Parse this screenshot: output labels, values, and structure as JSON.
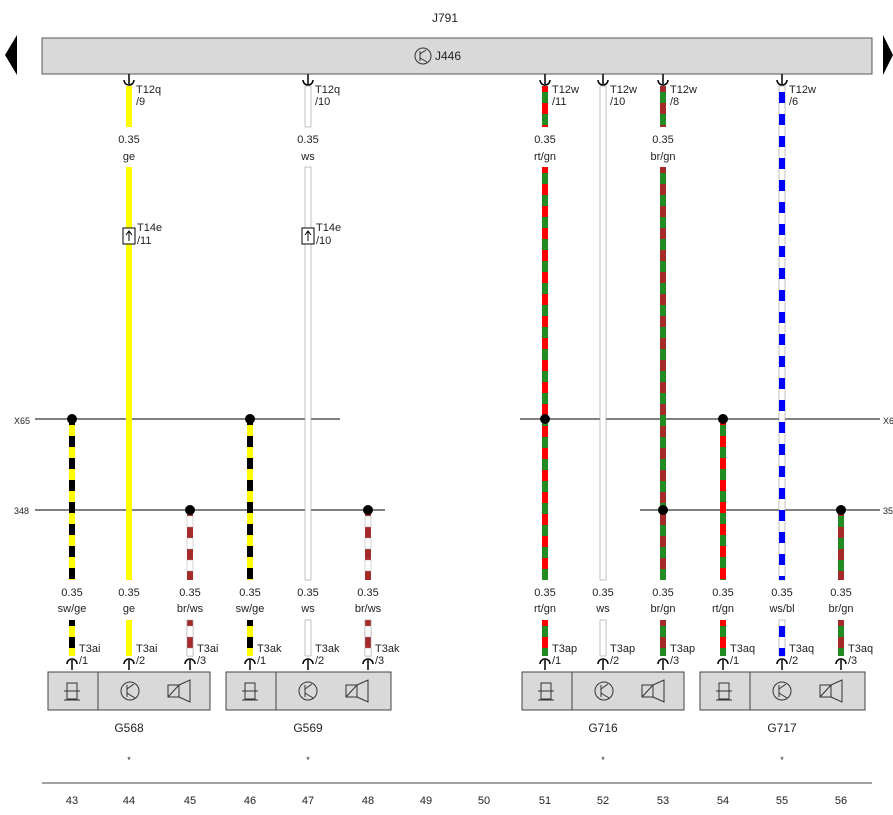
{
  "header": {
    "module": "J791",
    "unit": "J446"
  },
  "left_labels": [
    "X65",
    "348"
  ],
  "right_labels": [
    "X6",
    "35"
  ],
  "top_wires": [
    {
      "conn": "T12q",
      "pin": "/9",
      "gauge": "0.35",
      "color": "ge",
      "conn2": "T14e",
      "pin2": "/11"
    },
    {
      "conn": "T12q",
      "pin": "/10",
      "gauge": "0.35",
      "color": "ws",
      "conn2": "T14e",
      "pin2": "/10"
    },
    {
      "conn": "T12w",
      "pin": "/11",
      "gauge": "0.35",
      "color": "rt/gn"
    },
    {
      "conn": "T12w",
      "pin": "/10",
      "gauge": "",
      "color": ""
    },
    {
      "conn": "T12w",
      "pin": "/8",
      "gauge": "0.35",
      "color": "br/gn"
    },
    {
      "conn": "T12w",
      "pin": "/6",
      "gauge": "",
      "color": ""
    }
  ],
  "bottom_wires": [
    {
      "gauge": "0.35",
      "color": "sw/ge",
      "conn": "T3ai",
      "pin": "/1"
    },
    {
      "gauge": "0.35",
      "color": "ge",
      "conn": "T3ai",
      "pin": "/2"
    },
    {
      "gauge": "0.35",
      "color": "br/ws",
      "conn": "T3ai",
      "pin": "/3"
    },
    {
      "gauge": "0.35",
      "color": "sw/ge",
      "conn": "T3ak",
      "pin": "/1"
    },
    {
      "gauge": "0.35",
      "color": "ws",
      "conn": "T3ak",
      "pin": "/2"
    },
    {
      "gauge": "0.35",
      "color": "br/ws",
      "conn": "T3ak",
      "pin": "/3"
    },
    {
      "gauge": "0.35",
      "color": "rt/gn",
      "conn": "T3ap",
      "pin": "/1"
    },
    {
      "gauge": "0.35",
      "color": "ws",
      "conn": "T3ap",
      "pin": "/2"
    },
    {
      "gauge": "0.35",
      "color": "br/gn",
      "conn": "T3ap",
      "pin": "/3"
    },
    {
      "gauge": "0.35",
      "color": "rt/gn",
      "conn": "T3aq",
      "pin": "/1"
    },
    {
      "gauge": "0.35",
      "color": "ws/bl",
      "conn": "T3aq",
      "pin": "/2"
    },
    {
      "gauge": "0.35",
      "color": "br/gn",
      "conn": "T3aq",
      "pin": "/3"
    }
  ],
  "components": [
    {
      "name": "G568",
      "note": "*"
    },
    {
      "name": "G569",
      "note": "*"
    },
    {
      "name": "G716",
      "note": "*"
    },
    {
      "name": "G717",
      "note": "*"
    }
  ],
  "grid_numbers": [
    "43",
    "44",
    "45",
    "46",
    "47",
    "48",
    "49",
    "50",
    "51",
    "52",
    "53",
    "54",
    "55",
    "56"
  ],
  "icons": [
    "sensor-icon",
    "transistor-icon",
    "speaker-icon",
    "connector-arrow-icon",
    "wire-splice-icon"
  ],
  "wire_colors": {
    "sw": "#000000",
    "ge": "#ffff00",
    "br": "#a52a2a",
    "ws": "#ffffff",
    "rt": "#ff0000",
    "gn": "#228b22",
    "bl": "#0000ff"
  }
}
